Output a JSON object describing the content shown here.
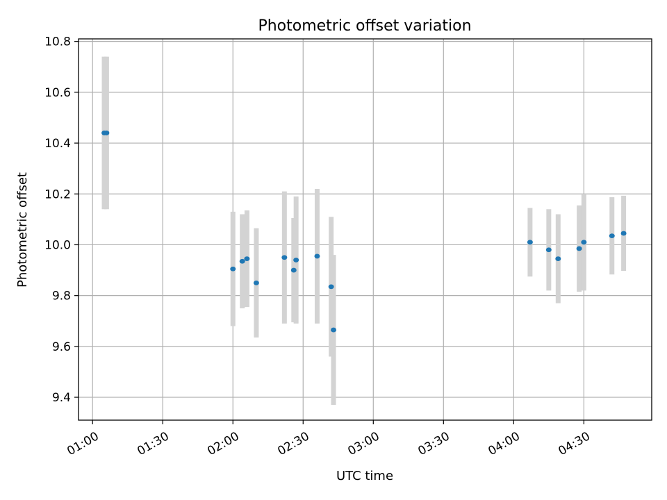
{
  "chart_data": {
    "type": "scatter",
    "title": "Photometric offset variation",
    "xlabel": "UTC time",
    "ylabel": "Photometric offset",
    "x_unit": "UTC hh:mm",
    "xlim": [
      "00:54",
      "04:59"
    ],
    "ylim": [
      9.31,
      10.81
    ],
    "x_ticks": [
      "01:00",
      "01:30",
      "02:00",
      "02:30",
      "03:00",
      "03:30",
      "04:00",
      "04:30"
    ],
    "y_ticks": [
      9.4,
      9.6,
      9.8,
      10.0,
      10.2,
      10.4,
      10.6,
      10.8
    ],
    "y_tick_labels": [
      "9.4",
      "9.6",
      "9.8",
      "10.0",
      "10.2",
      "10.4",
      "10.6",
      "10.8"
    ],
    "grid": true,
    "marker_color": "#1f77b4",
    "errorbar_color": "#d3d3d3",
    "series": [
      {
        "points": [
          {
            "x": "01:05",
            "y": 10.44,
            "err": 0.3
          },
          {
            "x": "01:06",
            "y": 10.44,
            "err": 0.3
          },
          {
            "x": "02:00",
            "y": 9.905,
            "err": 0.225
          },
          {
            "x": "02:04",
            "y": 9.935,
            "err": 0.185
          },
          {
            "x": "02:06",
            "y": 9.945,
            "err": 0.19
          },
          {
            "x": "02:10",
            "y": 9.85,
            "err": 0.215
          },
          {
            "x": "02:22",
            "y": 9.95,
            "err": 0.26
          },
          {
            "x": "02:26",
            "y": 9.9,
            "err": 0.205
          },
          {
            "x": "02:27",
            "y": 9.94,
            "err": 0.25
          },
          {
            "x": "02:36",
            "y": 9.955,
            "err": 0.265
          },
          {
            "x": "02:42",
            "y": 9.835,
            "err": 0.275
          },
          {
            "x": "02:43",
            "y": 9.665,
            "err": 0.295
          },
          {
            "x": "04:07",
            "y": 10.01,
            "err": 0.135
          },
          {
            "x": "04:15",
            "y": 9.98,
            "err": 0.16
          },
          {
            "x": "04:19",
            "y": 9.945,
            "err": 0.175
          },
          {
            "x": "04:28",
            "y": 9.985,
            "err": 0.17
          },
          {
            "x": "04:30",
            "y": 10.01,
            "err": 0.19
          },
          {
            "x": "04:42",
            "y": 10.035,
            "err": 0.152
          },
          {
            "x": "04:47",
            "y": 10.045,
            "err": 0.148
          }
        ]
      }
    ]
  }
}
